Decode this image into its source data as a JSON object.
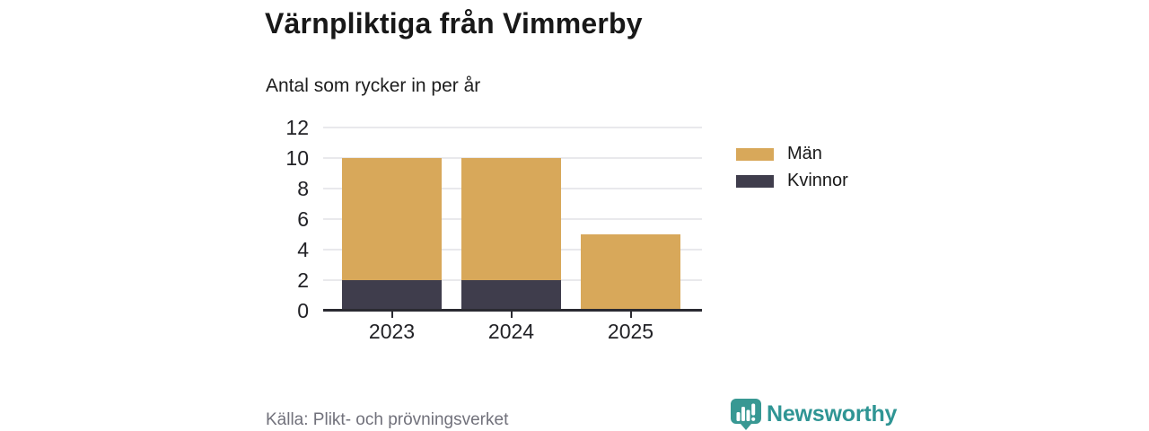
{
  "header": {
    "title": "Värnpliktiga från Vimmerby",
    "subtitle": "Antal som rycker in per år"
  },
  "footer": {
    "source": "Källa: Plikt- och prövningsverket",
    "brand": "Newsworthy"
  },
  "colors": {
    "men": "#D8A85A",
    "women": "#3F3D4C",
    "axis": "#2a2a31",
    "gridline": "#e9e9ec",
    "source_text": "#71717b",
    "brand_teal": "#2f9594",
    "background": "#ffffff"
  },
  "chart_data": {
    "type": "bar",
    "stacked": true,
    "title": "Värnpliktiga från Vimmerby",
    "subtitle": "Antal som rycker in per år",
    "categories": [
      "2023",
      "2024",
      "2025"
    ],
    "series": [
      {
        "name": "Män",
        "color": "#D8A85A",
        "values": [
          8,
          8,
          5
        ]
      },
      {
        "name": "Kvinnor",
        "color": "#3F3D4C",
        "values": [
          2,
          2,
          0
        ]
      }
    ],
    "totals": [
      10,
      10,
      5
    ],
    "xlabel": "",
    "ylabel": "",
    "ylim": [
      0,
      12
    ],
    "yticks": [
      0,
      2,
      4,
      6,
      8,
      10,
      12
    ],
    "grid": "horizontal",
    "legend_position": "right"
  }
}
